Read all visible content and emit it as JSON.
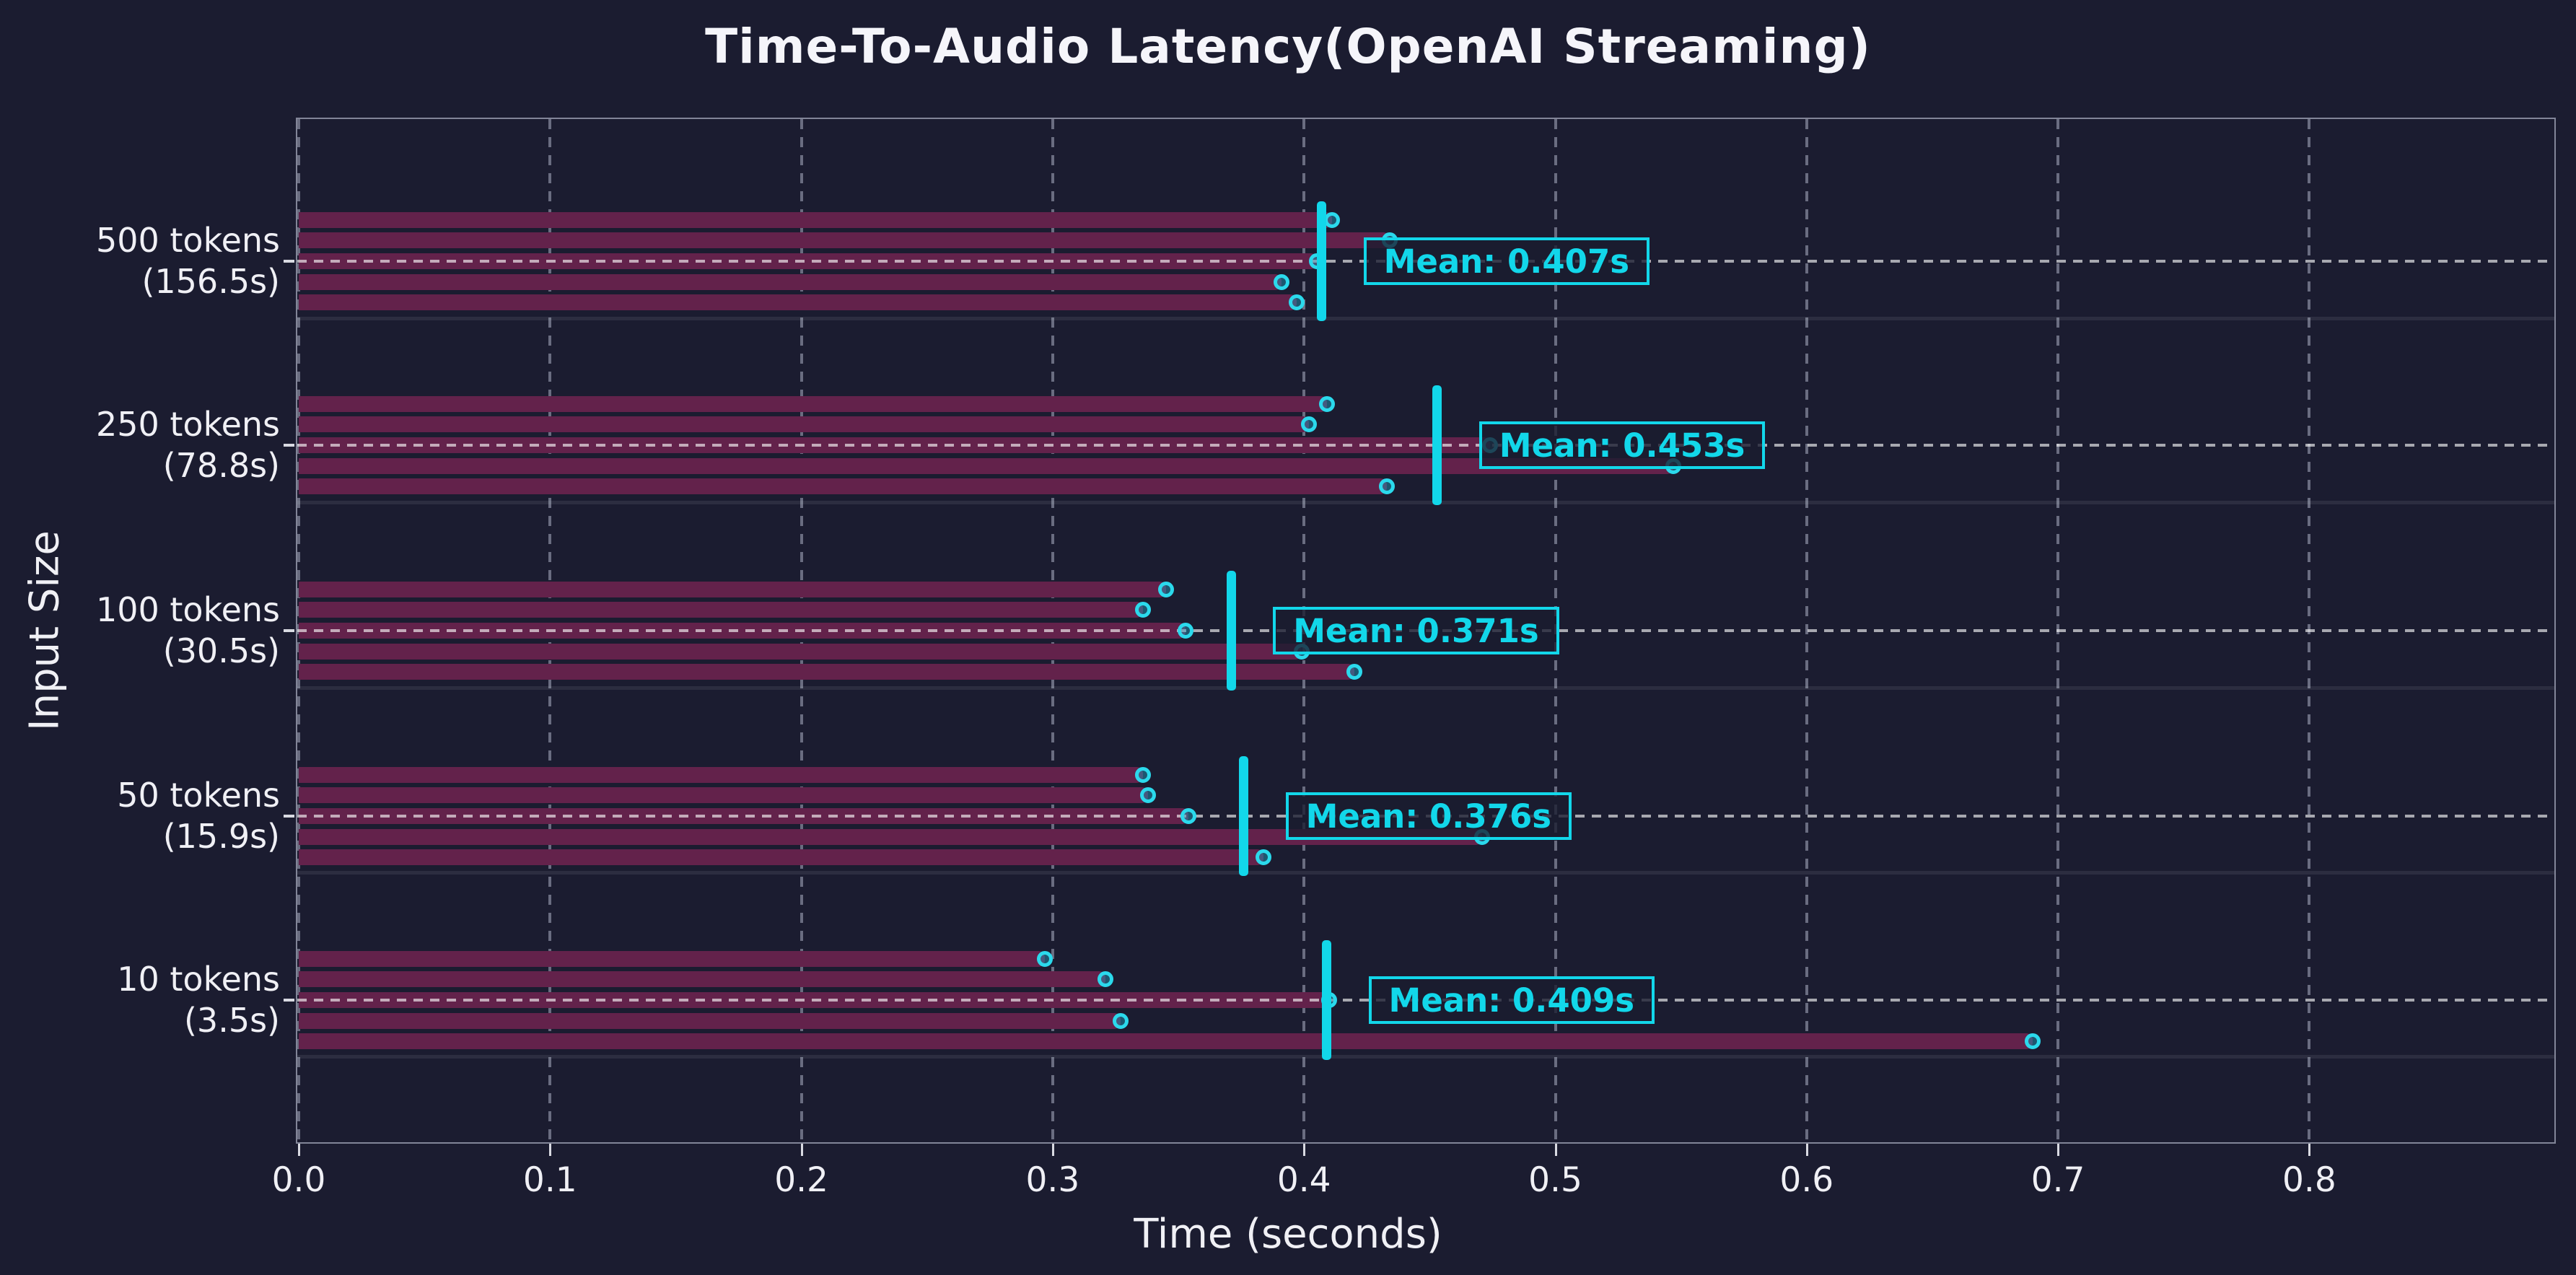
{
  "title": "Time-To-Audio Latency(OpenAI Streaming)",
  "colors": {
    "background": "#1b1c30",
    "bar": "#63224b",
    "accent_cyan": "#12d7ea",
    "dot_edge": "#2bd9ec",
    "text": "#f0f0f5",
    "grid_dash": "#aaafc3"
  },
  "chart_data": {
    "type": "bar",
    "orientation": "horizontal",
    "title": "Time-To-Audio Latency(OpenAI Streaming)",
    "xlabel": "Time (seconds)",
    "ylabel": "Input Size",
    "xlim": [
      0,
      0.9
    ],
    "xticks": [
      "0.0",
      "0.1",
      "0.2",
      "0.3",
      "0.4",
      "0.5",
      "0.6",
      "0.7",
      "0.8"
    ],
    "xtick_values": [
      0.0,
      0.1,
      0.2,
      0.3,
      0.4,
      0.5,
      0.6,
      0.7,
      0.8
    ],
    "grid": true,
    "legend": "none",
    "groups": [
      {
        "label": "500 tokens",
        "sublabel": "(156.5s)",
        "runs": [
          0.411,
          0.434,
          0.405,
          0.391,
          0.397
        ],
        "mean": 0.407,
        "mean_label": "Mean: 0.407s"
      },
      {
        "label": "250 tokens",
        "sublabel": "(78.8s)",
        "runs": [
          0.409,
          0.402,
          0.474,
          0.547,
          0.433
        ],
        "mean": 0.453,
        "mean_label": "Mean: 0.453s"
      },
      {
        "label": "100 tokens",
        "sublabel": "(30.5s)",
        "runs": [
          0.345,
          0.336,
          0.353,
          0.399,
          0.42
        ],
        "mean": 0.371,
        "mean_label": "Mean: 0.371s"
      },
      {
        "label": "50 tokens",
        "sublabel": "(15.9s)",
        "runs": [
          0.336,
          0.338,
          0.354,
          0.471,
          0.384
        ],
        "mean": 0.376,
        "mean_label": "Mean: 0.376s"
      },
      {
        "label": "10 tokens",
        "sublabel": "(3.5s)",
        "runs": [
          0.297,
          0.321,
          0.41,
          0.327,
          0.69
        ],
        "mean": 0.409,
        "mean_label": "Mean: 0.409s"
      }
    ]
  }
}
